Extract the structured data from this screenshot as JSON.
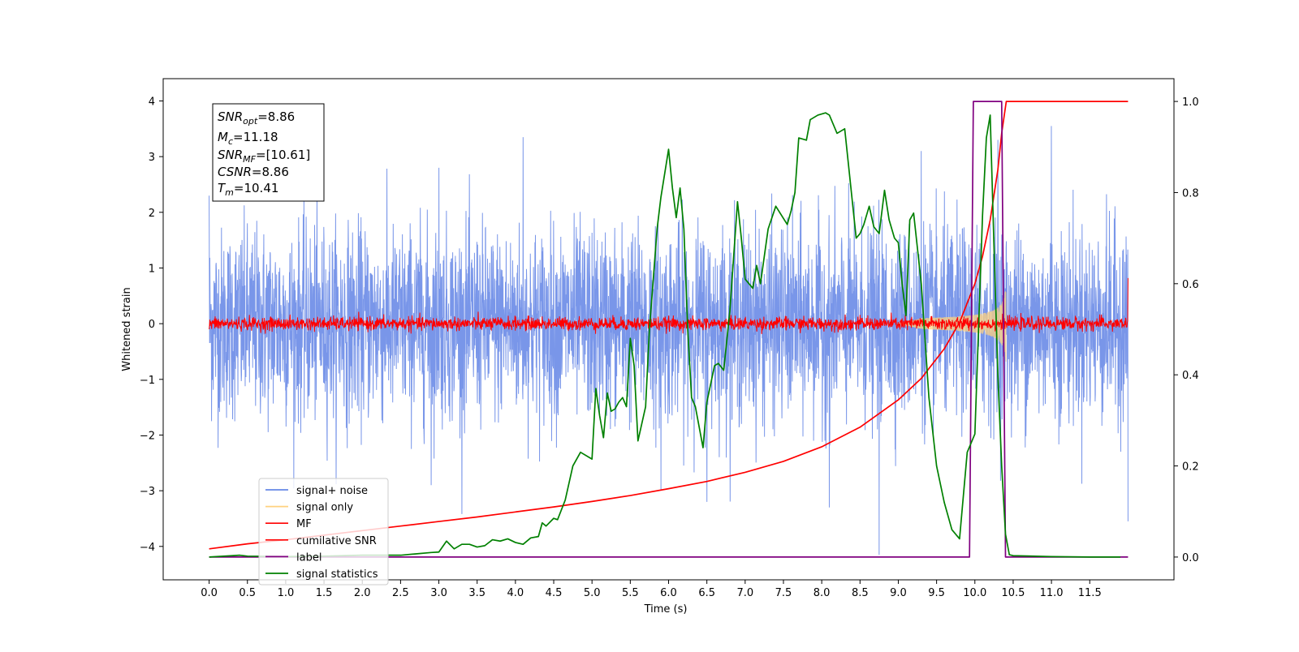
{
  "chart_data": {
    "type": "line",
    "title": "",
    "xlabel": "Time (s)",
    "ylabel": "Whitened strain",
    "xlim": [
      -0.6,
      12.6
    ],
    "ylim": [
      -4.6,
      4.4
    ],
    "y2lim": [
      -0.05,
      1.05
    ],
    "x_ticks": [
      0.0,
      0.5,
      1.0,
      1.5,
      2.0,
      2.5,
      3.0,
      3.5,
      4.0,
      4.5,
      5.0,
      5.5,
      6.0,
      6.5,
      7.0,
      7.5,
      8.0,
      8.5,
      9.0,
      9.5,
      10.0,
      10.5,
      11.0,
      11.5
    ],
    "x_tick_labels": [
      "0.0",
      "0.5",
      "1.0",
      "1.5",
      "2.0",
      "2.5",
      "3.0",
      "3.5",
      "4.0",
      "4.5",
      "5.0",
      "5.5",
      "6.0",
      "6.5",
      "7.0",
      "7.5",
      "8.0",
      "8.5",
      "9.0",
      "9.5",
      "10.0",
      "10.5",
      "11.0",
      "11.5"
    ],
    "y_ticks": [
      -4,
      -3,
      -2,
      -1,
      0,
      1,
      2,
      3,
      4
    ],
    "y_tick_labels": [
      "−4",
      "−3",
      "−2",
      "−1",
      "0",
      "1",
      "2",
      "3",
      "4"
    ],
    "y2_ticks": [
      0.0,
      0.2,
      0.4,
      0.6,
      0.8,
      1.0
    ],
    "y2_tick_labels": [
      "0.0",
      "0.2",
      "0.4",
      "0.6",
      "0.8",
      "1.0"
    ],
    "grid": false,
    "legend_position": "lower-left",
    "legend": [
      {
        "label": "signal+ noise",
        "color": "#6688e6"
      },
      {
        "label": "signal only",
        "color": "#ffd27f"
      },
      {
        "label": "MF",
        "color": "#ff0000"
      },
      {
        "label": "cumilative SNR",
        "color": "#ff0000"
      },
      {
        "label": "label",
        "color": "#800080"
      },
      {
        "label": "signal statistics",
        "color": "#008000"
      }
    ],
    "annotations": {
      "snr_opt": {
        "symbol": "SNR",
        "sub": "opt",
        "value": "=8.86"
      },
      "mc": {
        "symbol": "M",
        "sub": "c",
        "value": "=11.18"
      },
      "snr_mf": {
        "symbol": "SNR",
        "sub": "MF",
        "value": "=[10.61]"
      },
      "csnr": {
        "symbol": "CSNR",
        "sub": "",
        "value": "=8.86"
      },
      "tm": {
        "symbol": "T",
        "sub": "m",
        "value": "=10.41"
      }
    },
    "series": [
      {
        "name": "signal+ noise",
        "color": "#6688e6",
        "axis": "left",
        "kind": "noise",
        "x_range": [
          0.0,
          12.0
        ],
        "sigma": 0.85,
        "mean": 0.0,
        "spikes": [
          [
            0.0,
            4.0
          ],
          [
            0.0,
            2.3
          ],
          [
            4.1,
            3.35
          ],
          [
            3.0,
            2.8
          ],
          [
            9.3,
            3.1
          ],
          [
            10.3,
            3.3
          ],
          [
            11.0,
            3.55
          ],
          [
            8.75,
            -4.15
          ],
          [
            8.1,
            -3.3
          ],
          [
            12.0,
            -3.55
          ],
          [
            6.5,
            -3.2
          ],
          [
            2.9,
            -2.9
          ],
          [
            5.9,
            -3.0
          ]
        ]
      },
      {
        "name": "signal only",
        "color": "#ffd27f",
        "axis": "left",
        "kind": "chirp",
        "x_range": [
          9.0,
          10.41
        ],
        "peak_amplitude": 0.75
      },
      {
        "name": "MF",
        "color": "#ff0000",
        "axis": "left",
        "kind": "noise",
        "x_range": [
          0.0,
          12.0
        ],
        "sigma": 0.06,
        "mean": 0.0,
        "spikes": [
          [
            0.0,
            1.0
          ],
          [
            12.0,
            0.82
          ],
          [
            0.0,
            -0.1
          ]
        ]
      },
      {
        "name": "cumilative SNR",
        "color": "#ff0000",
        "axis": "right",
        "x": [
          0.0,
          0.5,
          1.0,
          1.5,
          2.0,
          2.5,
          3.0,
          3.5,
          4.0,
          4.5,
          5.0,
          5.5,
          6.0,
          6.5,
          7.0,
          7.5,
          8.0,
          8.5,
          9.0,
          9.3,
          9.6,
          9.8,
          10.0,
          10.1,
          10.2,
          10.3,
          10.35,
          10.41,
          12.0
        ],
        "y": [
          0.018,
          0.029,
          0.038,
          0.048,
          0.058,
          0.068,
          0.078,
          0.088,
          0.099,
          0.11,
          0.122,
          0.135,
          0.15,
          0.166,
          0.186,
          0.21,
          0.242,
          0.285,
          0.345,
          0.392,
          0.457,
          0.515,
          0.6,
          0.66,
          0.74,
          0.85,
          0.93,
          1.0,
          1.0
        ]
      },
      {
        "name": "label",
        "color": "#800080",
        "axis": "right",
        "x": [
          0.0,
          9.93,
          9.98,
          10.35,
          10.4,
          11.0,
          12.0
        ],
        "y": [
          0.0,
          0.0,
          1.0,
          1.0,
          0.0,
          0.0,
          0.0
        ]
      },
      {
        "name": "signal statistics",
        "color": "#008000",
        "axis": "right",
        "x": [
          0.0,
          0.3,
          0.4,
          0.5,
          1.0,
          1.5,
          2.0,
          2.5,
          2.7,
          2.9,
          3.0,
          3.1,
          3.2,
          3.3,
          3.4,
          3.5,
          3.6,
          3.7,
          3.8,
          3.9,
          4.0,
          4.1,
          4.2,
          4.3,
          4.35,
          4.4,
          4.5,
          4.55,
          4.65,
          4.75,
          4.85,
          5.0,
          5.05,
          5.1,
          5.15,
          5.2,
          5.25,
          5.3,
          5.35,
          5.4,
          5.45,
          5.5,
          5.55,
          5.6,
          5.7,
          5.75,
          5.85,
          5.9,
          6.0,
          6.05,
          6.1,
          6.15,
          6.2,
          6.25,
          6.3,
          6.35,
          6.45,
          6.5,
          6.6,
          6.65,
          6.72,
          6.8,
          6.9,
          6.95,
          7.0,
          7.1,
          7.15,
          7.2,
          7.3,
          7.4,
          7.55,
          7.6,
          7.65,
          7.7,
          7.8,
          7.85,
          7.95,
          8.05,
          8.1,
          8.2,
          8.3,
          8.35,
          8.45,
          8.5,
          8.55,
          8.62,
          8.68,
          8.75,
          8.82,
          8.88,
          8.95,
          9.0,
          9.05,
          9.1,
          9.15,
          9.2,
          9.3,
          9.4,
          9.5,
          9.6,
          9.7,
          9.8,
          9.9,
          9.95,
          10.0,
          10.1,
          10.15,
          10.2,
          10.25,
          10.3,
          10.35,
          10.4,
          10.45,
          10.5,
          11.0,
          11.5,
          11.9
        ],
        "y": [
          0.0,
          0.003,
          0.004,
          0.002,
          0.001,
          0.002,
          0.004,
          0.004,
          0.007,
          0.01,
          0.011,
          0.035,
          0.018,
          0.028,
          0.028,
          0.022,
          0.025,
          0.038,
          0.035,
          0.04,
          0.032,
          0.028,
          0.042,
          0.045,
          0.075,
          0.068,
          0.085,
          0.082,
          0.125,
          0.2,
          0.23,
          0.215,
          0.37,
          0.31,
          0.262,
          0.36,
          0.32,
          0.325,
          0.34,
          0.35,
          0.33,
          0.48,
          0.42,
          0.255,
          0.33,
          0.5,
          0.72,
          0.79,
          0.895,
          0.81,
          0.745,
          0.81,
          0.72,
          0.5,
          0.35,
          0.33,
          0.24,
          0.34,
          0.42,
          0.425,
          0.41,
          0.54,
          0.78,
          0.7,
          0.61,
          0.59,
          0.64,
          0.6,
          0.72,
          0.77,
          0.73,
          0.76,
          0.8,
          0.92,
          0.915,
          0.96,
          0.97,
          0.975,
          0.97,
          0.93,
          0.94,
          0.86,
          0.7,
          0.71,
          0.73,
          0.77,
          0.725,
          0.71,
          0.805,
          0.74,
          0.7,
          0.69,
          0.6,
          0.53,
          0.74,
          0.755,
          0.6,
          0.35,
          0.2,
          0.12,
          0.06,
          0.04,
          0.23,
          0.25,
          0.27,
          0.75,
          0.92,
          0.97,
          0.68,
          0.4,
          0.2,
          0.05,
          0.005,
          0.003,
          0.001,
          0.0,
          0.0
        ]
      }
    ]
  }
}
